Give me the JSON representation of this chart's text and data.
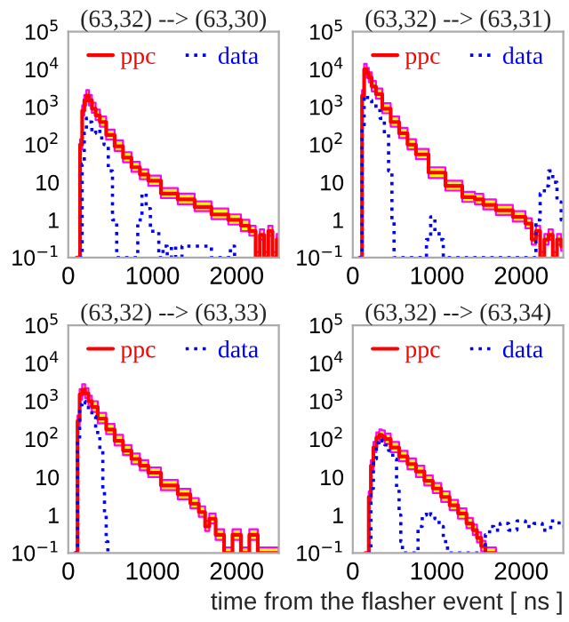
{
  "chart_data": [
    {
      "type": "step",
      "title": "(63,32) --> (63,30)",
      "log": "y",
      "legend": "top",
      "xlim": [
        0,
        2500
      ],
      "ylim": [
        0.1,
        100000
      ],
      "xticks": [
        0,
        1000,
        2000
      ],
      "yticks": [
        {
          "value": 0.1,
          "label": "10$^{−1}$"
        },
        1,
        10,
        {
          "value": 100,
          "label": "10$^{2}$"
        },
        {
          "value": 1000,
          "label": "10$^{3}$"
        },
        {
          "value": 10000,
          "label": "10$^{4}$"
        },
        {
          "value": 100000,
          "label": "10$^{5}$"
        }
      ],
      "series": [
        {
          "name": "ppc",
          "color": "#ff0000",
          "line_style": "solid",
          "x": [
            100,
            130,
            150,
            180,
            200,
            230,
            260,
            300,
            350,
            400,
            500,
            600,
            700,
            800,
            900,
            1000,
            1200,
            1400,
            1600,
            1800,
            2000,
            2100,
            2200,
            2250,
            2300,
            2350,
            2400,
            2450,
            2500
          ],
          "values": [
            0.1,
            0.1,
            100,
            800,
            1500,
            2000,
            1500,
            900,
            600,
            400,
            180,
            90,
            45,
            25,
            16,
            11,
            5,
            3.5,
            2.2,
            1.4,
            1,
            0.7,
            0.5,
            0.1,
            0.4,
            0.1,
            0.5,
            0.1,
            0.3
          ],
          "lower": [
            0.1,
            0.1,
            75,
            600,
            1100,
            1500,
            1100,
            700,
            450,
            300,
            135,
            68,
            34,
            19,
            12,
            8,
            3.8,
            2.6,
            1.7,
            1.05,
            0.75,
            0.5,
            0.38,
            0.1,
            0.3,
            0.1,
            0.38,
            0.1,
            0.22
          ],
          "upper": [
            0.1,
            0.1,
            140,
            1100,
            2100,
            2800,
            2100,
            1300,
            850,
            560,
            250,
            130,
            63,
            35,
            22,
            15,
            7,
            5,
            3.1,
            2,
            1.4,
            1,
            0.7,
            0.14,
            0.56,
            0.14,
            0.7,
            0.14,
            0.42
          ]
        },
        {
          "name": "data",
          "color": "#0000ff",
          "line_style": "dotted",
          "x": [
            130,
            150,
            180,
            200,
            230,
            260,
            300,
            350,
            400,
            450,
            500,
            550,
            600,
            700,
            800,
            850,
            900,
            950,
            1000,
            1050,
            1100,
            1150,
            1200,
            1250,
            1300,
            1400,
            1500,
            1900,
            1950,
            2000
          ],
          "values": [
            0.1,
            0.1,
            30,
            200,
            500,
            400,
            200,
            250,
            150,
            100,
            20,
            1,
            0.1,
            0.1,
            0.1,
            1,
            5,
            2,
            0.5,
            0.5,
            0.1,
            0.2,
            0.1,
            0.2,
            0.1,
            0.2,
            0.2,
            0.1,
            0.2,
            0.1
          ]
        }
      ]
    },
    {
      "type": "step",
      "title": "(63,32) --> (63,31)",
      "log": "y",
      "legend": "top",
      "xlim": [
        0,
        2500
      ],
      "ylim": [
        0.1,
        100000
      ],
      "xticks": [
        0,
        1000,
        2000
      ],
      "yticks": [
        {
          "value": 0.1,
          "label": "10$^{−1}$"
        },
        1,
        10,
        {
          "value": 100,
          "label": "10$^{2}$"
        },
        {
          "value": 1000,
          "label": "10$^{3}$"
        },
        {
          "value": 10000,
          "label": "10$^{4}$"
        },
        {
          "value": 100000,
          "label": "10$^{5}$"
        }
      ],
      "series": [
        {
          "name": "ppc",
          "color": "#ff0000",
          "line_style": "solid",
          "x": [
            80,
            100,
            120,
            150,
            180,
            200,
            250,
            300,
            400,
            500,
            600,
            700,
            800,
            1000,
            1200,
            1400,
            1500,
            1600,
            1800,
            2000,
            2100,
            2150,
            2200,
            2250,
            2300,
            2350,
            2400,
            2450,
            2500
          ],
          "values": [
            0.1,
            0.1,
            2000,
            10000,
            8000,
            6000,
            3500,
            2200,
            900,
            400,
            200,
            100,
            55,
            18,
            8,
            4,
            3.5,
            2.5,
            1.8,
            1.2,
            0.8,
            0.3,
            0.5,
            0.1,
            0.3,
            0.4,
            0.1,
            0.3,
            0.2
          ],
          "lower": [
            0.1,
            0.1,
            1500,
            7500,
            6000,
            4500,
            2600,
            1650,
            680,
            300,
            150,
            75,
            41,
            13,
            6,
            3,
            2.6,
            1.9,
            1.35,
            0.9,
            0.6,
            0.22,
            0.38,
            0.1,
            0.22,
            0.3,
            0.1,
            0.22,
            0.15
          ],
          "upper": [
            0.1,
            0.1,
            2800,
            14000,
            11000,
            8400,
            4900,
            3100,
            1260,
            560,
            280,
            140,
            77,
            25,
            11,
            5.6,
            4.9,
            3.5,
            2.5,
            1.7,
            1.1,
            0.42,
            0.7,
            0.14,
            0.42,
            0.56,
            0.14,
            0.42,
            0.28
          ]
        },
        {
          "name": "data",
          "color": "#0000ff",
          "line_style": "dotted",
          "x": [
            80,
            100,
            120,
            150,
            200,
            250,
            300,
            350,
            400,
            450,
            480,
            500,
            850,
            900,
            950,
            1000,
            1050,
            1100,
            2150,
            2200,
            2250,
            2300,
            2350,
            2400,
            2450,
            2500
          ],
          "values": [
            0.1,
            0.1,
            300,
            2000,
            1500,
            1200,
            800,
            500,
            200,
            20,
            1,
            0.1,
            0.1,
            0.3,
            1.2,
            0.5,
            0.3,
            0.1,
            0.1,
            1,
            5,
            8,
            20,
            10,
            3,
            1
          ]
        }
      ]
    },
    {
      "type": "step",
      "title": "(63,32) --> (63,33)",
      "log": "y",
      "legend": "top",
      "xlim": [
        0,
        2500
      ],
      "ylim": [
        0.1,
        100000
      ],
      "xticks": [
        0,
        1000,
        2000
      ],
      "yticks": [
        {
          "value": 0.1,
          "label": "10$^{−1}$"
        },
        1,
        10,
        {
          "value": 100,
          "label": "10$^{2}$"
        },
        {
          "value": 1000,
          "label": "10$^{3}$"
        },
        {
          "value": 10000,
          "label": "10$^{4}$"
        },
        {
          "value": 100000,
          "label": "10$^{5}$"
        }
      ],
      "series": [
        {
          "name": "ppc",
          "color": "#ff0000",
          "line_style": "solid",
          "x": [
            80,
            100,
            120,
            150,
            180,
            220,
            260,
            300,
            400,
            500,
            600,
            700,
            800,
            900,
            1000,
            1200,
            1400,
            1500,
            1600,
            1650,
            1700,
            1800,
            1900,
            2000,
            2100,
            2200,
            2300,
            2500
          ],
          "values": [
            0.1,
            0.1,
            300,
            1500,
            2000,
            1600,
            1000,
            700,
            350,
            180,
            90,
            50,
            30,
            20,
            13,
            6,
            3.5,
            2,
            1.2,
            0.5,
            0.8,
            0.3,
            0.1,
            0.3,
            0.1,
            0.3,
            0.1,
            0.1
          ],
          "lower": [
            0.1,
            0.1,
            225,
            1100,
            1500,
            1200,
            750,
            520,
            260,
            135,
            68,
            38,
            22,
            15,
            10,
            4.5,
            2.6,
            1.5,
            0.9,
            0.38,
            0.6,
            0.22,
            0.1,
            0.22,
            0.1,
            0.22,
            0.1,
            0.1
          ],
          "upper": [
            0.1,
            0.1,
            420,
            2100,
            2800,
            2200,
            1400,
            1000,
            490,
            250,
            130,
            70,
            42,
            28,
            18,
            8.4,
            4.9,
            2.8,
            1.7,
            0.7,
            1.1,
            0.42,
            0.14,
            0.42,
            0.14,
            0.42,
            0.14,
            0.14
          ]
        },
        {
          "name": "data",
          "color": "#0000ff",
          "line_style": "dotted",
          "x": [
            80,
            100,
            120,
            150,
            180,
            220,
            260,
            300,
            350,
            400,
            420,
            440,
            460,
            480
          ],
          "values": [
            0.1,
            0.1,
            100,
            800,
            1000,
            900,
            600,
            400,
            150,
            50,
            5,
            1,
            0.2,
            0.1
          ]
        }
      ]
    },
    {
      "type": "step",
      "title": "(63,32) --> (63,34)",
      "xlabel": "time from the flasher event [ ns ]",
      "log": "y",
      "legend": "top",
      "xlim": [
        0,
        2500
      ],
      "ylim": [
        0.1,
        100000
      ],
      "xticks": [
        0,
        1000,
        2000
      ],
      "yticks": [
        {
          "value": 0.1,
          "label": "10$^{−1}$"
        },
        1,
        10,
        {
          "value": 100,
          "label": "10$^{2}$"
        },
        {
          "value": 1000,
          "label": "10$^{3}$"
        },
        {
          "value": 10000,
          "label": "10$^{4}$"
        },
        {
          "value": 100000,
          "label": "10$^{5}$"
        }
      ],
      "series": [
        {
          "name": "ppc",
          "color": "#ff0000",
          "line_style": "solid",
          "x": [
            150,
            180,
            200,
            230,
            260,
            300,
            330,
            360,
            400,
            500,
            600,
            700,
            800,
            900,
            1000,
            1100,
            1200,
            1300,
            1400,
            1450,
            1500,
            1550,
            1600,
            1700
          ],
          "values": [
            0.1,
            0.1,
            3,
            20,
            60,
            110,
            130,
            120,
            100,
            60,
            35,
            22,
            14,
            8,
            5,
            3,
            1.8,
            1.1,
            0.6,
            0.4,
            0.25,
            0.15,
            0.1,
            0.1
          ],
          "lower": [
            0.1,
            0.1,
            2.2,
            15,
            45,
            82,
            98,
            90,
            75,
            45,
            26,
            16,
            10,
            6,
            3.8,
            2.2,
            1.35,
            0.8,
            0.45,
            0.3,
            0.19,
            0.11,
            0.1,
            0.1
          ],
          "upper": [
            0.1,
            0.1,
            4.2,
            28,
            84,
            150,
            180,
            170,
            140,
            84,
            49,
            31,
            20,
            11,
            7,
            4.2,
            2.5,
            1.5,
            0.84,
            0.56,
            0.35,
            0.21,
            0.14,
            0.14
          ]
        },
        {
          "name": "data",
          "color": "#0000ff",
          "line_style": "dotted",
          "x": [
            180,
            200,
            230,
            260,
            300,
            330,
            360,
            400,
            450,
            500,
            540,
            560,
            580,
            600,
            750,
            800,
            850,
            900,
            950,
            1000,
            1050,
            1100,
            1150,
            1200,
            1550,
            1600,
            1650,
            1700,
            1800,
            1900,
            2000,
            2100,
            2200,
            2300,
            2400,
            2500
          ],
          "values": [
            0.1,
            0.1,
            5,
            30,
            80,
            100,
            90,
            70,
            50,
            30,
            5,
            1,
            0.2,
            0.1,
            0.1,
            0.5,
            1,
            1.2,
            1,
            0.8,
            0.5,
            0.2,
            0.1,
            0.1,
            0.1,
            0.3,
            0.5,
            0.4,
            0.6,
            0.4,
            0.7,
            0.5,
            0.6,
            0.4,
            0.7,
            0.5
          ]
        }
      ]
    }
  ]
}
